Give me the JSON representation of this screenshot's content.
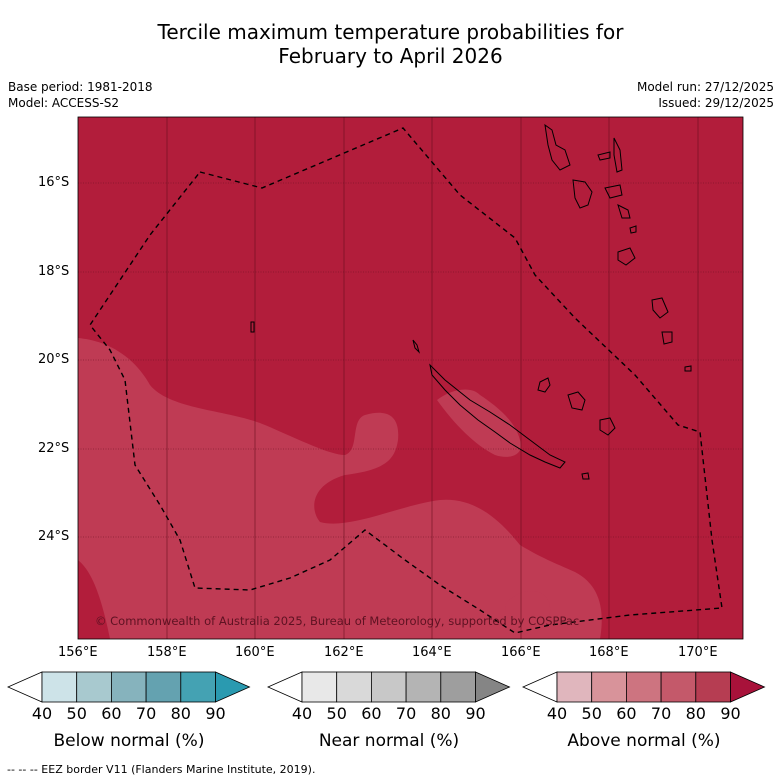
{
  "title_line1": "Tercile maximum temperature probabilities for",
  "title_line2": "February to April 2026",
  "meta_left": {
    "base_period": "Base period: 1981-2018",
    "model": "Model: ACCESS-S2"
  },
  "meta_right": {
    "model_run": "Model run: 27/12/2025",
    "issued": "Issued: 29/12/2025"
  },
  "map": {
    "lat_ticks": [
      "16°S",
      "18°S",
      "20°S",
      "22°S",
      "24°S"
    ],
    "lon_ticks": [
      "156°E",
      "158°E",
      "160°E",
      "162°E",
      "164°E",
      "166°E",
      "168°E",
      "170°E"
    ],
    "copyright": "© Commonwealth of Australia 2025, Bureau of Meteorology, supported by COSPPac",
    "colors": {
      "above_80_90": "#b21d3b",
      "above_70_80": "#bf3b54",
      "land_outline": "#000000"
    }
  },
  "colorbars": [
    {
      "label": "Below normal (%)",
      "ticks": [
        "40",
        "50",
        "60",
        "70",
        "80",
        "90"
      ],
      "colors": [
        "#ffffff",
        "#cde3e8",
        "#a8c9cf",
        "#86b3bd",
        "#64a2b0",
        "#44a2b3",
        "#2a9ab0"
      ]
    },
    {
      "label": "Near normal (%)",
      "ticks": [
        "40",
        "50",
        "60",
        "70",
        "80",
        "90"
      ],
      "colors": [
        "#ffffff",
        "#e8e8e8",
        "#d9d9d9",
        "#c8c8c8",
        "#b4b4b4",
        "#9e9e9e",
        "#858585"
      ]
    },
    {
      "label": "Above normal (%)",
      "ticks": [
        "40",
        "50",
        "60",
        "70",
        "80",
        "90"
      ],
      "colors": [
        "#ffffff",
        "#e0b6bd",
        "#d8939a",
        "#cd7480",
        "#c4596a",
        "#b63d52",
        "#a8123a"
      ]
    }
  ],
  "footnote": "-- -- -- EEZ border V11 (Flanders Marine Institute, 2019)."
}
